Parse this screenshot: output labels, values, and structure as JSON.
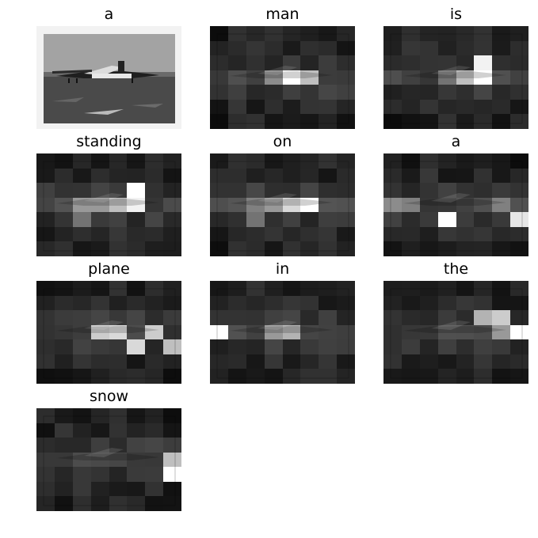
{
  "panels": [
    {
      "word": "a",
      "original": true
    },
    {
      "word": "man",
      "hot": [
        [
          3,
          4,
          1.0
        ],
        [
          3,
          5,
          0.75
        ],
        [
          3,
          3,
          0.55
        ]
      ]
    },
    {
      "word": "is",
      "hot": [
        [
          2,
          5,
          0.95
        ],
        [
          3,
          5,
          1.0
        ],
        [
          3,
          4,
          0.75
        ],
        [
          3,
          3,
          0.45
        ]
      ]
    },
    {
      "word": "standing",
      "hot": [
        [
          2,
          5,
          1.0
        ],
        [
          3,
          5,
          0.95
        ],
        [
          3,
          4,
          0.75
        ],
        [
          3,
          2,
          0.6
        ],
        [
          3,
          3,
          0.6
        ],
        [
          4,
          2,
          0.45
        ]
      ]
    },
    {
      "word": "on",
      "hot": [
        [
          3,
          5,
          1.0
        ],
        [
          3,
          4,
          0.85
        ],
        [
          3,
          3,
          0.6
        ],
        [
          3,
          2,
          0.5
        ],
        [
          4,
          2,
          0.45
        ]
      ]
    },
    {
      "word": "a",
      "hot": [
        [
          4,
          3,
          1.0
        ],
        [
          4,
          7,
          0.9
        ],
        [
          3,
          6,
          0.5
        ],
        [
          3,
          1,
          0.5
        ],
        [
          3,
          0,
          0.55
        ]
      ]
    },
    {
      "word": "plane",
      "hot": [
        [
          3,
          3,
          0.8
        ],
        [
          3,
          4,
          0.85
        ],
        [
          3,
          6,
          0.8
        ],
        [
          4,
          5,
          0.85
        ],
        [
          4,
          7,
          0.75
        ]
      ]
    },
    {
      "word": "in",
      "hot": [
        [
          3,
          0,
          1.0
        ],
        [
          3,
          4,
          0.7
        ],
        [
          3,
          3,
          0.6
        ]
      ]
    },
    {
      "word": "the",
      "hot": [
        [
          2,
          5,
          0.7
        ],
        [
          2,
          6,
          0.8
        ],
        [
          3,
          7,
          1.0
        ],
        [
          3,
          6,
          0.6
        ]
      ]
    },
    {
      "word": "snow",
      "hot": [
        [
          4,
          7,
          1.0
        ],
        [
          3,
          7,
          0.75
        ]
      ]
    }
  ]
}
